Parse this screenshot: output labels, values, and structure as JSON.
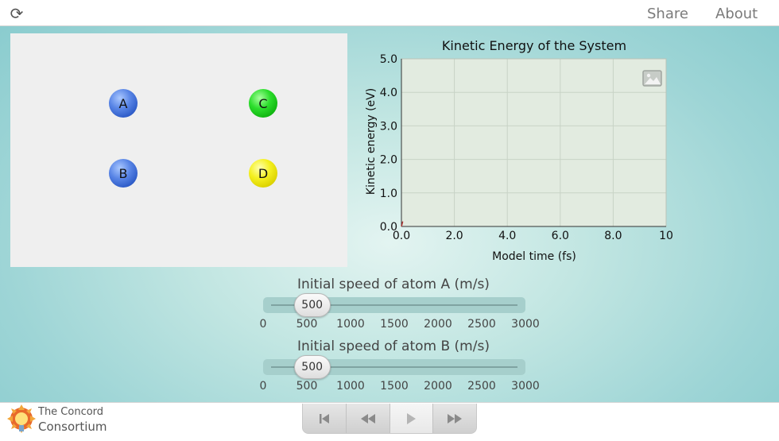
{
  "topbar": {
    "share_label": "Share",
    "about_label": "About",
    "reload_icon": "reload-icon"
  },
  "atoms": [
    {
      "label": "A",
      "color": "blue"
    },
    {
      "label": "B",
      "color": "blue"
    },
    {
      "label": "C",
      "color": "green"
    },
    {
      "label": "D",
      "color": "yellow"
    }
  ],
  "chart_data": {
    "type": "line",
    "title": "Kinetic Energy of the System",
    "xlabel": "Model time (fs)",
    "ylabel": "Kinetic energy (eV)",
    "xlim": [
      0,
      10
    ],
    "ylim": [
      0,
      5
    ],
    "x_ticks": [
      "0.0",
      "2.0",
      "4.0",
      "6.0",
      "8.0",
      "10"
    ],
    "y_ticks": [
      "0.0",
      "1.0",
      "2.0",
      "3.0",
      "4.0",
      "5.0"
    ],
    "grid": true,
    "series": [
      {
        "x": [
          0,
          0.05
        ],
        "y": [
          0,
          0.15
        ]
      }
    ]
  },
  "sliders": [
    {
      "title": "Initial speed of atom A (m/s)",
      "value": 500,
      "value_label": "500",
      "min": 0,
      "max": 3000,
      "ticks": [
        "0",
        "500",
        "1000",
        "1500",
        "2000",
        "2500",
        "3000"
      ]
    },
    {
      "title": "Initial speed of atom B (m/s)",
      "value": 500,
      "value_label": "500",
      "min": 0,
      "max": 3000,
      "ticks": [
        "0",
        "500",
        "1000",
        "1500",
        "2000",
        "2500",
        "3000"
      ]
    }
  ],
  "footer": {
    "logo_line1": "The Concord",
    "logo_line2": "Consortium"
  },
  "playback": [
    "reset-icon",
    "step-back-icon",
    "play-icon",
    "step-forward-icon"
  ],
  "colors": {
    "accent": "#f0a030",
    "plot_bg": "#e2ebe0",
    "grid": "#c8d3c6"
  }
}
